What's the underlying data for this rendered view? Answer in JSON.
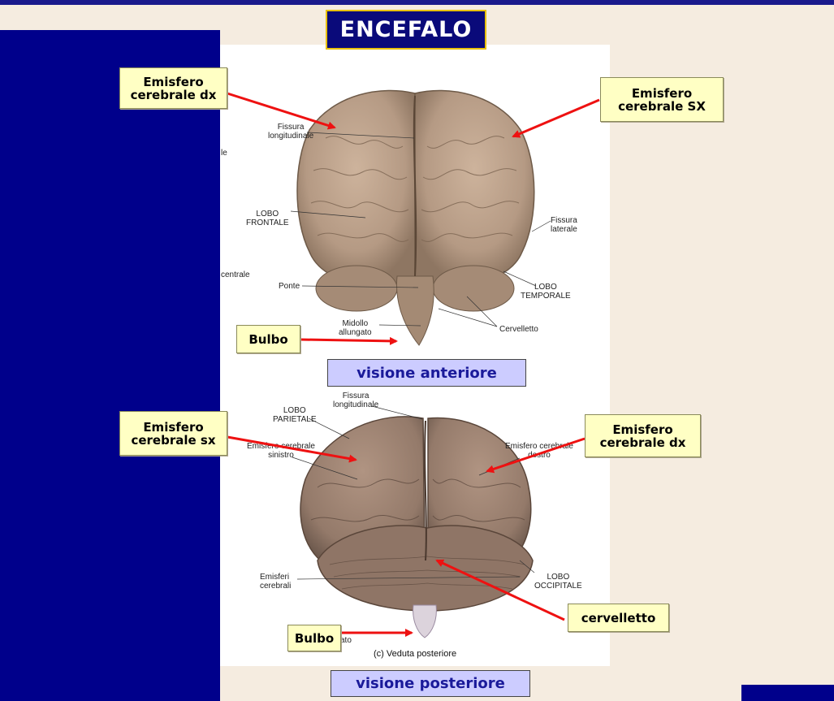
{
  "title": "ENCEFALO",
  "anterior": {
    "caption": "visione anteriore",
    "callouts": {
      "emisfero_dx": [
        "Emisfero",
        "cerebrale dx"
      ],
      "emisfero_sx": [
        "Emisfero",
        "cerebrale SX"
      ],
      "bulbo": "Bulbo"
    },
    "figure_labels": {
      "fissura_longitudinale": [
        "Fissura",
        "longitudinale"
      ],
      "lobo_frontale": [
        "LOBO",
        "FRONTALE"
      ],
      "fissura_laterale": [
        "Fissura",
        "laterale"
      ],
      "ponte": "Ponte",
      "lobo_temporale": [
        "LOBO",
        "TEMPORALE"
      ],
      "midollo_allungato": [
        "Midollo",
        "allungato"
      ],
      "cervelletto": "Cervelletto",
      "edge_le": "le",
      "edge_centrale": "centrale"
    }
  },
  "posterior": {
    "caption": "visione posteriore",
    "callouts": {
      "emisfero_sx": [
        "Emisfero",
        "cerebrale sx"
      ],
      "emisfero_dx": [
        "Emisfero",
        "cerebrale dx"
      ],
      "cervelletto": "cervelletto",
      "bulbo": "Bulbo"
    },
    "figure_labels": {
      "fissura_longitudinale": [
        "Fissura",
        "longitudinale"
      ],
      "lobo_parietale": [
        "LOBO",
        "PARIETALE"
      ],
      "emisfero_cerebrale_sinistro": [
        "Emisfero cerebrale",
        "sinistro"
      ],
      "emisfero_cerebrale_destro": [
        "Emisfero cerebrale",
        "destro"
      ],
      "emisferi_cerebrali": [
        "Emisferi",
        "cerebrali"
      ],
      "lobo_occipitale": [
        "LOBO",
        "OCCIPITALE"
      ],
      "veduta_posteriore": "(c) Veduta posteriore",
      "edge_ato": "ato"
    }
  },
  "colors": {
    "navy": "#00008b",
    "label_fill": "#ffffc4",
    "caption_fill": "#ccccff",
    "arrow": "#ee1111",
    "brain": "#b59a84"
  }
}
